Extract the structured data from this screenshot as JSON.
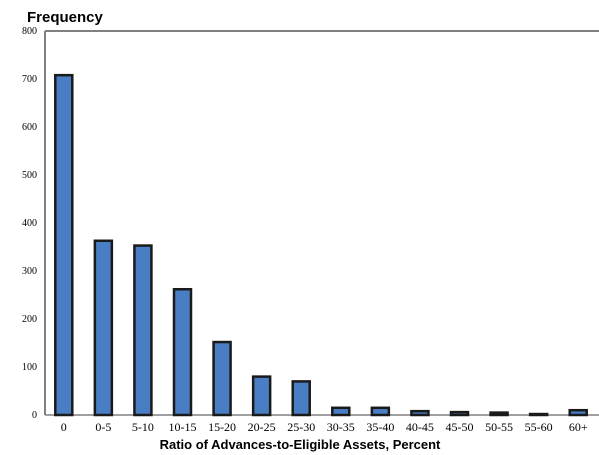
{
  "chart_data": {
    "type": "bar",
    "ylabel": "Frequency",
    "xlabel": "Ratio of Advances-to-Eligible Assets, Percent",
    "categories": [
      "0",
      "0-5",
      "5-10",
      "10-15",
      "15-20",
      "20-25",
      "25-30",
      "30-35",
      "35-40",
      "40-45",
      "45-50",
      "50-55",
      "55-60",
      "60+"
    ],
    "values": [
      708,
      363,
      353,
      262,
      152,
      80,
      70,
      15,
      15,
      8,
      6,
      5,
      2,
      10
    ],
    "ylim": [
      0,
      800
    ],
    "yticks": [
      0,
      100,
      200,
      300,
      400,
      500,
      600,
      700,
      800
    ],
    "grid": false,
    "bar_color": "#4a7ec4",
    "bar_edge_color": "#1a1a1a",
    "axis_color": "#808080"
  }
}
